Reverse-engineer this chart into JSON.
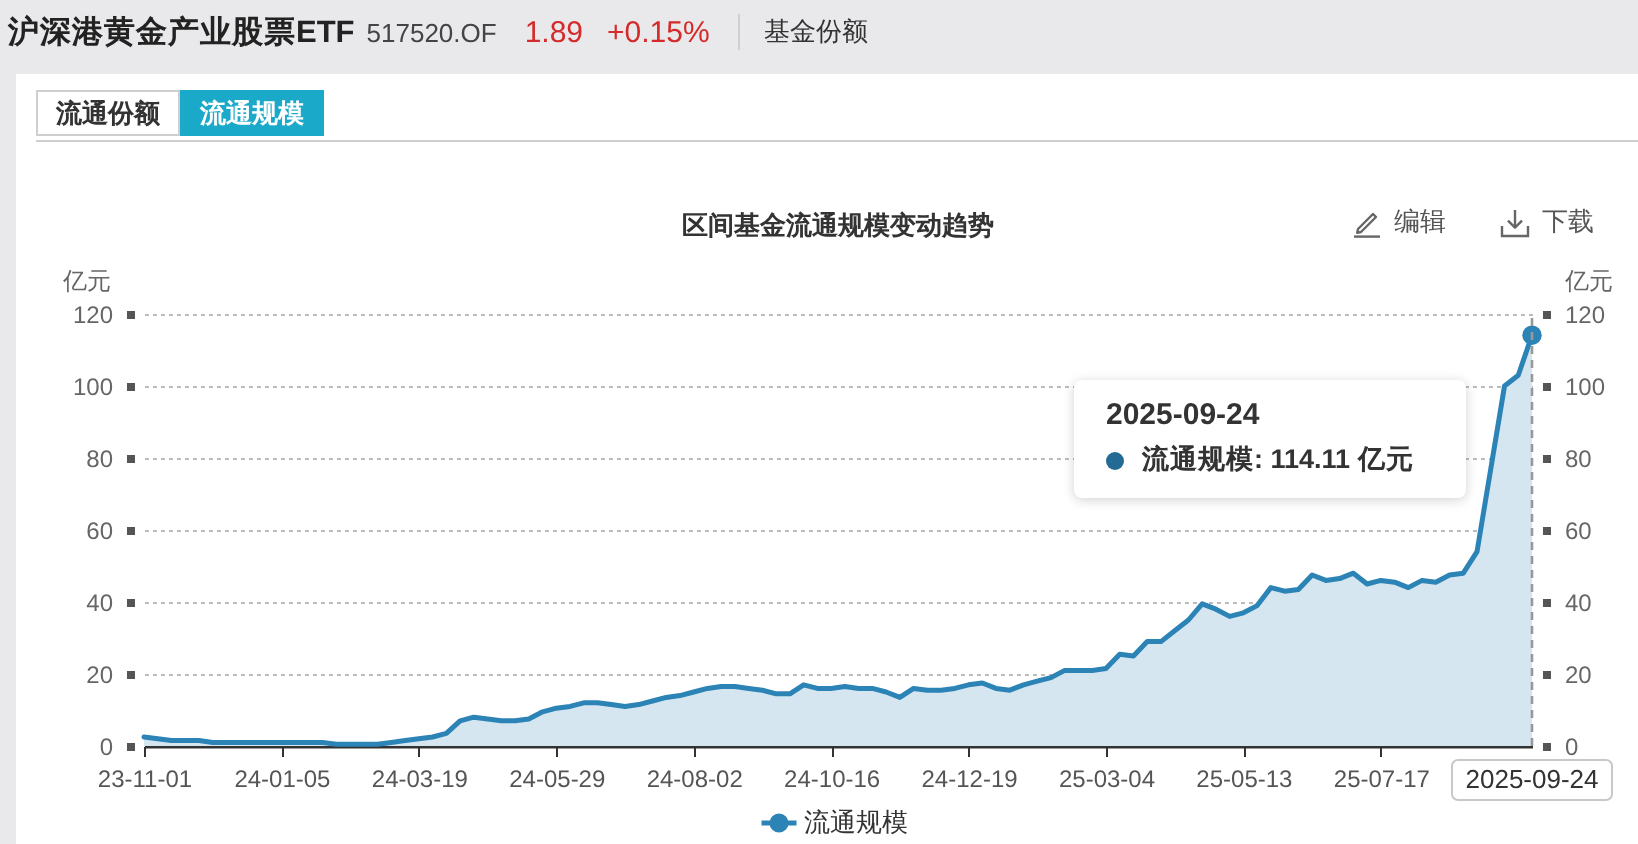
{
  "chart_data": {
    "type": "area",
    "title": "区间基金流通规模变动趋势",
    "ylabel": "亿元",
    "y2label": "亿元",
    "categories": [
      "23-11-01",
      null,
      null,
      null,
      null,
      null,
      null,
      null,
      null,
      null,
      "24-01-05",
      null,
      null,
      null,
      null,
      null,
      null,
      null,
      null,
      null,
      "24-03-19",
      null,
      null,
      null,
      null,
      null,
      null,
      null,
      null,
      null,
      "24-05-29",
      null,
      null,
      null,
      null,
      null,
      null,
      null,
      null,
      null,
      "24-08-02",
      null,
      null,
      null,
      null,
      null,
      null,
      null,
      null,
      null,
      "24-10-16",
      null,
      null,
      null,
      null,
      null,
      null,
      null,
      null,
      null,
      "24-12-19",
      null,
      null,
      null,
      null,
      null,
      null,
      null,
      null,
      null,
      "25-03-04",
      null,
      null,
      null,
      null,
      null,
      null,
      null,
      null,
      null,
      "25-05-13",
      null,
      null,
      null,
      null,
      null,
      null,
      null,
      null,
      null,
      "25-07-17",
      null,
      null,
      null,
      null,
      null,
      null,
      null,
      null,
      null,
      null,
      "2025-09-24"
    ],
    "series": [
      {
        "name": "流通规模",
        "color": "#2b83b6",
        "values": [
          2.5,
          2,
          1.5,
          1.5,
          1.5,
          1,
          1,
          1,
          1,
          1,
          1,
          1,
          1,
          1,
          0.5,
          0.5,
          0.5,
          0.5,
          1,
          1.5,
          2,
          2.5,
          3.5,
          7,
          8,
          7.5,
          7,
          7,
          7.5,
          9.5,
          10.5,
          11,
          12,
          12,
          11.5,
          11,
          11.5,
          12.5,
          13.5,
          14,
          15,
          16,
          16.5,
          16.5,
          16,
          15.5,
          14.5,
          14.5,
          17,
          16,
          16,
          16.5,
          16,
          16,
          15,
          13.5,
          16,
          15.5,
          15.5,
          16,
          17,
          17.5,
          16,
          15.5,
          17,
          18,
          19,
          21,
          21,
          21,
          21.5,
          25.5,
          25,
          29,
          29,
          32,
          35,
          39.5,
          38,
          36,
          37,
          39,
          44,
          43,
          43.5,
          47.5,
          46,
          46.5,
          48,
          45,
          46,
          45.5,
          44,
          46,
          45.5,
          47.5,
          48,
          54,
          77,
          100,
          103,
          114.11
        ]
      }
    ],
    "ylim": [
      0,
      120
    ],
    "yticks": [
      0,
      20,
      40,
      60,
      80,
      100,
      120
    ],
    "y2lim": [
      0,
      120
    ],
    "y2ticks": [
      0,
      20,
      40,
      60,
      80,
      100,
      120
    ],
    "grid": "y",
    "legend": "bottom",
    "ref_lines": [
      {
        "axis": "x",
        "value": "2025-09-24",
        "color": "#999999",
        "line_style": "dashed"
      }
    ],
    "annotations": [
      "沪深港黄金产业股票ETF",
      "517520.OF",
      "1.89",
      "+0.15%",
      "基金份额",
      "流通份额",
      "流通规模",
      "编辑",
      "下载",
      "2025-09-24",
      "流通规模: 114.11 亿元"
    ]
  }
}
